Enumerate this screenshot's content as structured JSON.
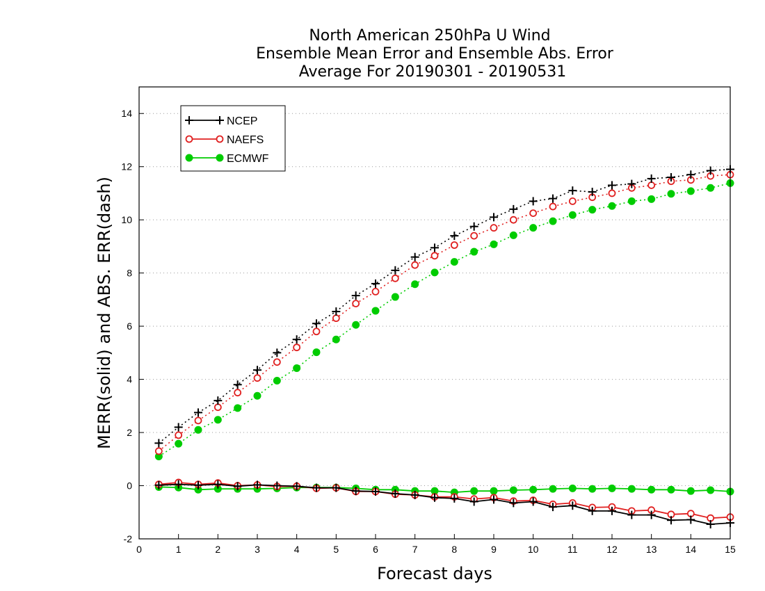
{
  "chart_data": {
    "type": "line",
    "title": [
      "North American 250hPa U Wind",
      "Ensemble Mean Error and Ensemble Abs. Error",
      "Average For 20190301 - 20190531"
    ],
    "xlabel": "Forecast days",
    "ylabel": "MERR(solid) and ABS. ERR(dash)",
    "xlim": [
      0,
      15
    ],
    "ylim": [
      -2,
      15
    ],
    "xticks": [
      0,
      1,
      2,
      3,
      4,
      5,
      6,
      7,
      8,
      9,
      10,
      11,
      12,
      13,
      14,
      15
    ],
    "yticks": [
      -2,
      0,
      2,
      4,
      6,
      8,
      10,
      12,
      14
    ],
    "grid": "horizontal dotted",
    "legend_position": "top-left",
    "x": [
      0.5,
      1,
      1.5,
      2,
      2.5,
      3,
      3.5,
      4,
      4.5,
      5,
      5.5,
      6,
      6.5,
      7,
      7.5,
      8,
      8.5,
      9,
      9.5,
      10,
      10.5,
      11,
      11.5,
      12,
      12.5,
      13,
      13.5,
      14,
      14.5,
      15
    ],
    "series": [
      {
        "name": "NCEP",
        "color": "#000000",
        "marker": "plus",
        "abs_error": [
          1.6,
          2.2,
          2.75,
          3.2,
          3.8,
          4.35,
          5.0,
          5.5,
          6.1,
          6.55,
          7.15,
          7.6,
          8.1,
          8.6,
          8.95,
          9.4,
          9.75,
          10.1,
          10.4,
          10.7,
          10.8,
          11.1,
          11.05,
          11.3,
          11.35,
          11.55,
          11.6,
          11.7,
          11.85,
          11.9
        ],
        "mean_error": [
          0.02,
          0.05,
          0.02,
          0.05,
          -0.02,
          0.03,
          0.0,
          -0.02,
          -0.08,
          -0.08,
          -0.2,
          -0.22,
          -0.3,
          -0.35,
          -0.45,
          -0.48,
          -0.6,
          -0.52,
          -0.65,
          -0.6,
          -0.8,
          -0.75,
          -0.95,
          -0.95,
          -1.1,
          -1.1,
          -1.3,
          -1.28,
          -1.45,
          -1.4
        ]
      },
      {
        "name": "NAEFS",
        "color": "#e02020",
        "marker": "open-circle",
        "abs_error": [
          1.3,
          1.9,
          2.45,
          2.95,
          3.5,
          4.05,
          4.65,
          5.2,
          5.8,
          6.3,
          6.85,
          7.3,
          7.8,
          8.3,
          8.65,
          9.05,
          9.4,
          9.7,
          10.0,
          10.25,
          10.5,
          10.7,
          10.85,
          11.0,
          11.2,
          11.3,
          11.45,
          11.5,
          11.65,
          11.7
        ],
        "mean_error": [
          0.05,
          0.12,
          0.05,
          0.1,
          0.0,
          0.03,
          -0.03,
          -0.02,
          -0.1,
          -0.08,
          -0.22,
          -0.22,
          -0.32,
          -0.35,
          -0.42,
          -0.42,
          -0.5,
          -0.45,
          -0.58,
          -0.55,
          -0.7,
          -0.65,
          -0.82,
          -0.8,
          -0.95,
          -0.92,
          -1.08,
          -1.05,
          -1.22,
          -1.18
        ]
      },
      {
        "name": "ECMWF",
        "color": "#00cc00",
        "marker": "filled-circle",
        "abs_error": [
          1.1,
          1.58,
          2.1,
          2.48,
          2.92,
          3.38,
          3.95,
          4.42,
          5.02,
          5.5,
          6.05,
          6.58,
          7.1,
          7.58,
          8.02,
          8.42,
          8.8,
          9.08,
          9.42,
          9.7,
          9.95,
          10.18,
          10.38,
          10.52,
          10.7,
          10.78,
          10.98,
          11.08,
          11.2,
          11.38
        ],
        "mean_error": [
          -0.05,
          -0.07,
          -0.15,
          -0.12,
          -0.12,
          -0.12,
          -0.1,
          -0.07,
          -0.07,
          -0.07,
          -0.1,
          -0.15,
          -0.15,
          -0.2,
          -0.2,
          -0.25,
          -0.2,
          -0.2,
          -0.17,
          -0.15,
          -0.12,
          -0.1,
          -0.12,
          -0.1,
          -0.12,
          -0.15,
          -0.15,
          -0.2,
          -0.17,
          -0.22
        ]
      }
    ]
  }
}
